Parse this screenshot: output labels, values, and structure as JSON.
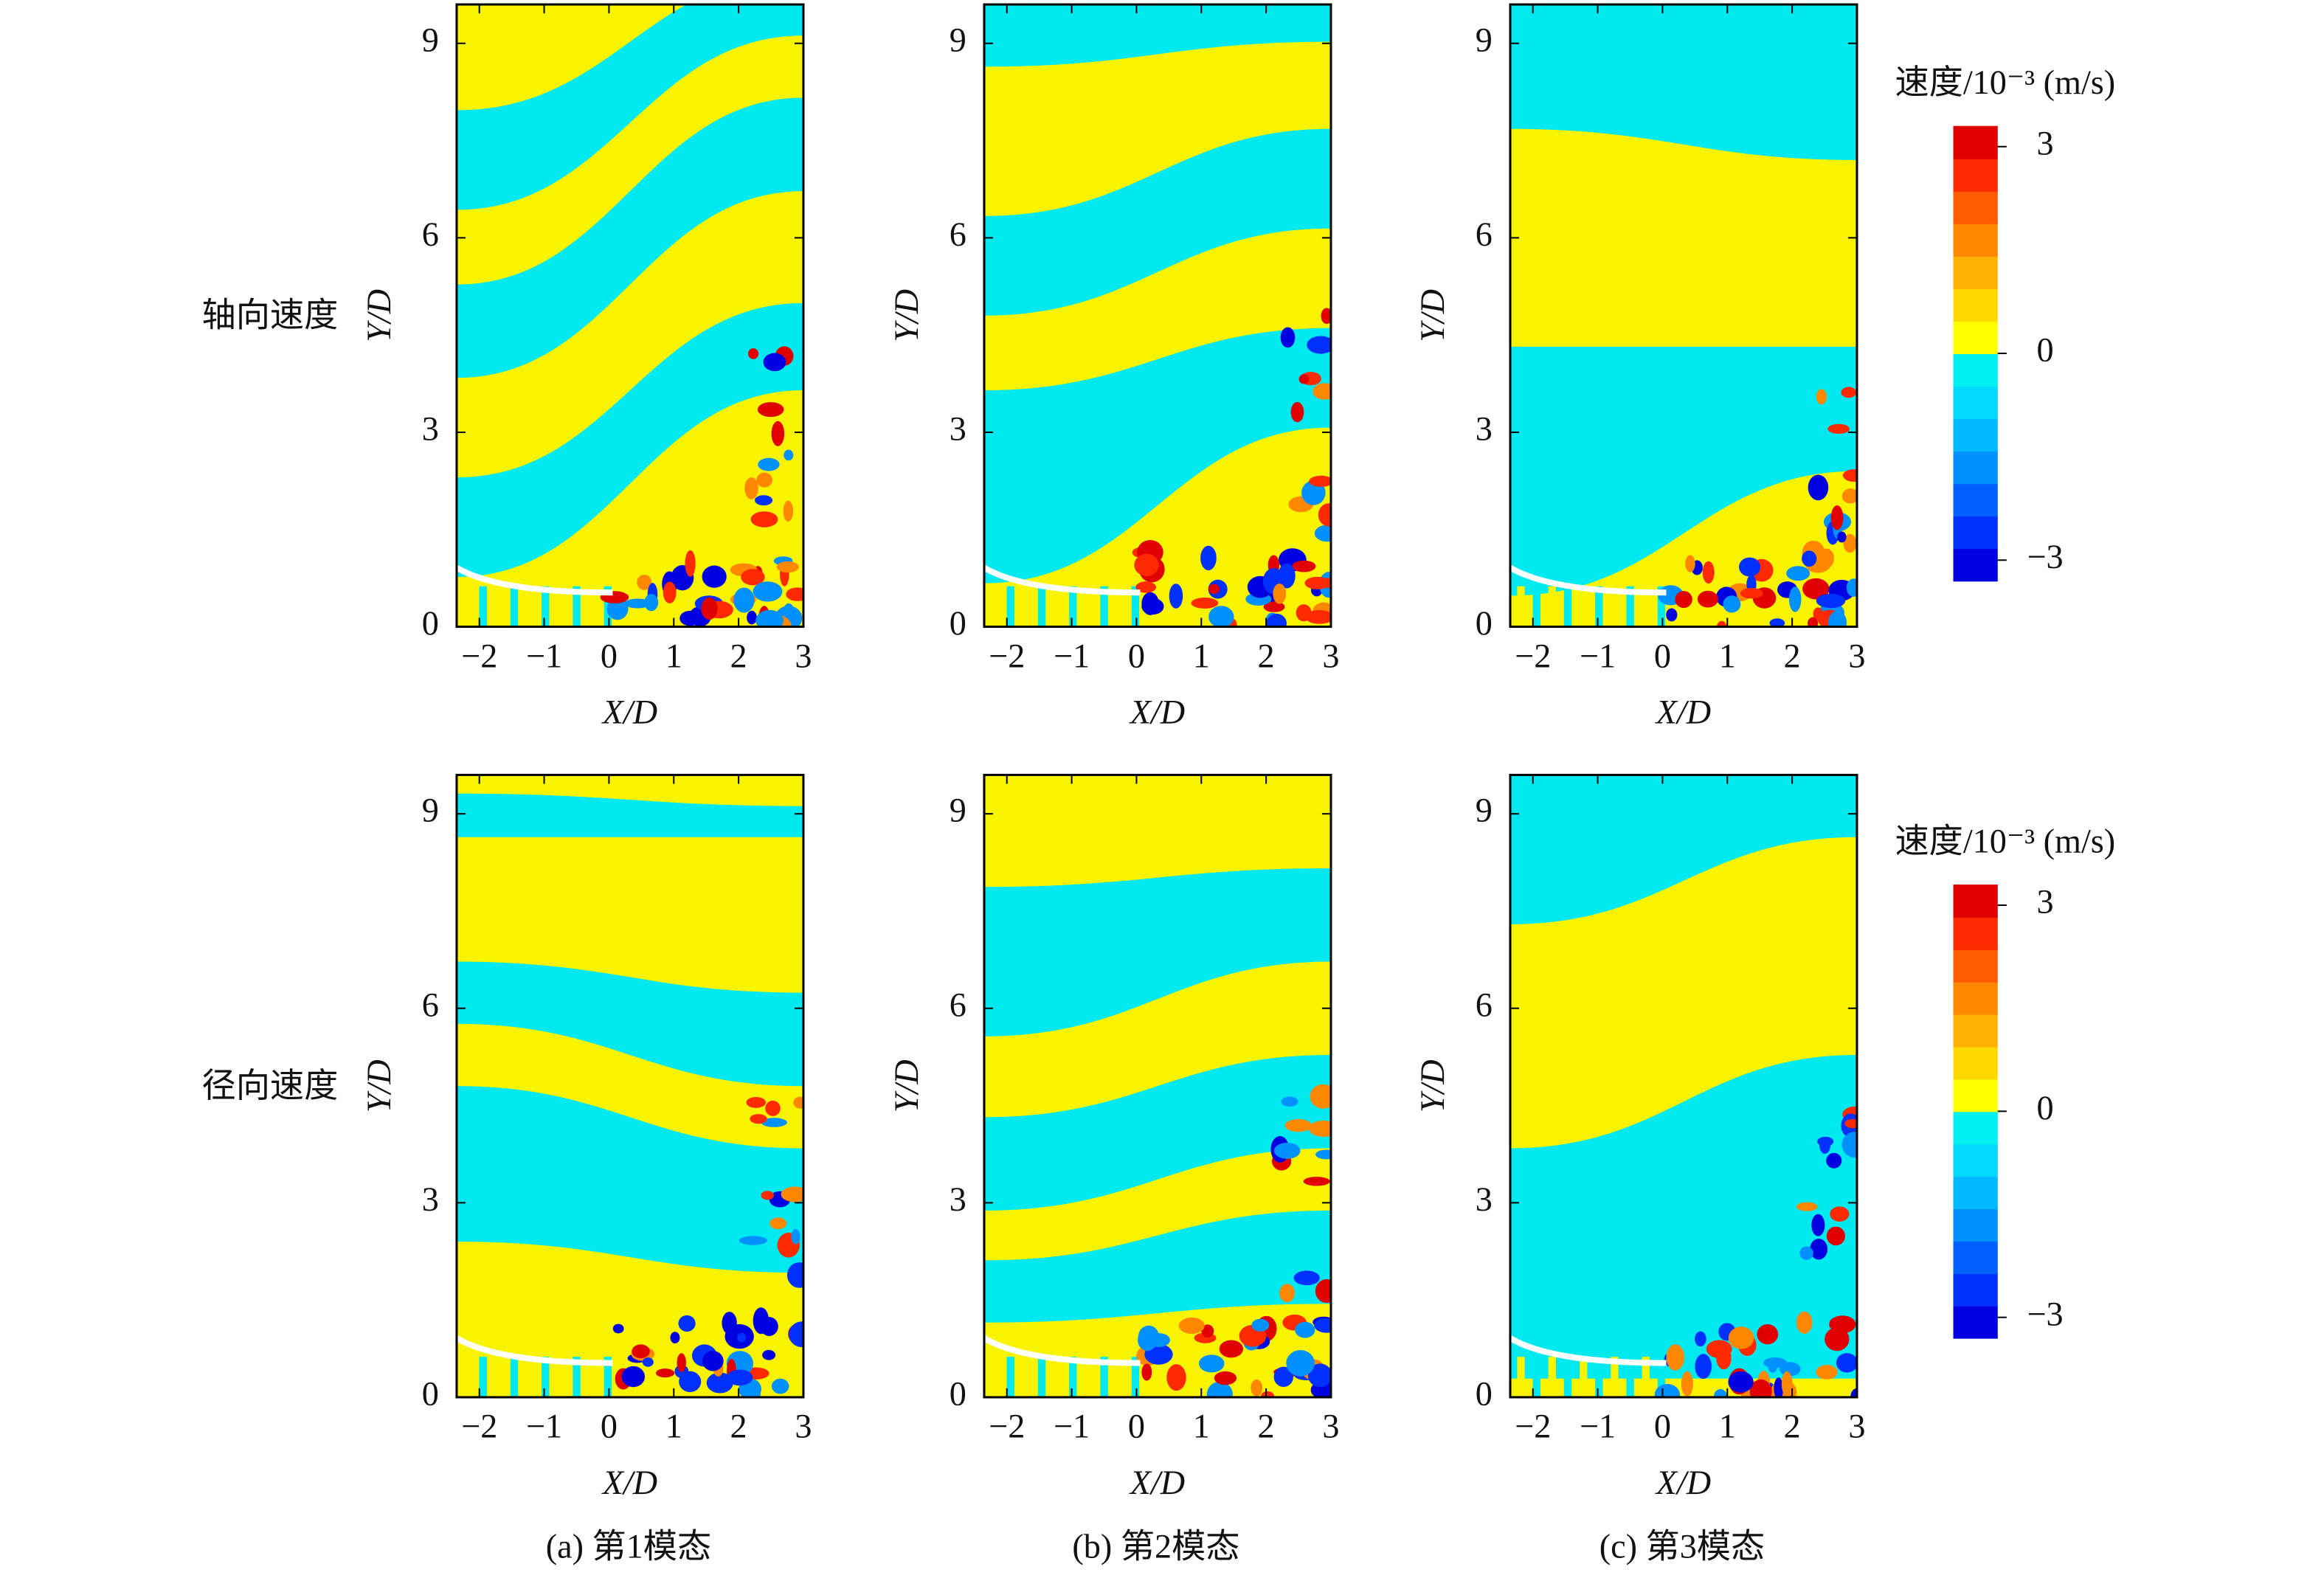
{
  "chart_data": [
    {
      "type": "contour",
      "xlabel": "X/D",
      "ylabel": "Y/D",
      "xlim": [
        -2.35,
        3
      ],
      "ylim": [
        0,
        9.6
      ],
      "xticks": [
        {
          "value": -2,
          "label": "−2"
        },
        {
          "value": -1,
          "label": "−1"
        },
        0,
        1,
        2,
        3
      ],
      "yticks": [
        0,
        3,
        6,
        9
      ]
    },
    {
      "type": "contour",
      "xlabel": "X/D",
      "ylabel": "Y/D",
      "xlim": [
        -2.35,
        3
      ],
      "ylim": [
        0,
        9.6
      ],
      "xticks": [
        {
          "value": -2,
          "label": "−2"
        },
        {
          "value": -1,
          "label": "−1"
        },
        0,
        1,
        2,
        3
      ],
      "yticks": [
        0,
        3,
        6,
        9
      ]
    },
    {
      "type": "contour",
      "xlabel": "X/D",
      "ylabel": "Y/D",
      "xlim": [
        -2.35,
        3
      ],
      "ylim": [
        0,
        9.6
      ],
      "xticks": [
        {
          "value": -2,
          "label": "−2"
        },
        {
          "value": -1,
          "label": "−1"
        },
        0,
        1,
        2,
        3
      ],
      "yticks": [
        0,
        3,
        6,
        9
      ]
    },
    {
      "type": "contour",
      "xlabel": "X/D",
      "ylabel": "Y/D",
      "xlim": [
        -2.35,
        3
      ],
      "ylim": [
        0,
        9.6
      ],
      "xticks": [
        {
          "value": -2,
          "label": "−2"
        },
        {
          "value": -1,
          "label": "−1"
        },
        0,
        1,
        2,
        3
      ],
      "yticks": [
        0,
        3,
        6,
        9
      ]
    },
    {
      "type": "contour",
      "xlabel": "X/D",
      "ylabel": "Y/D",
      "xlim": [
        -2.35,
        3
      ],
      "ylim": [
        0,
        9.6
      ],
      "xticks": [
        {
          "value": -2,
          "label": "−2"
        },
        {
          "value": -1,
          "label": "−1"
        },
        0,
        1,
        2,
        3
      ],
      "yticks": [
        0,
        3,
        6,
        9
      ]
    },
    {
      "type": "contour",
      "xlabel": "X/D",
      "ylabel": "Y/D",
      "xlim": [
        -2.35,
        3
      ],
      "ylim": [
        0,
        9.6
      ],
      "xticks": [
        {
          "value": -2,
          "label": "−2"
        },
        {
          "value": -1,
          "label": "−1"
        },
        0,
        1,
        2,
        3
      ],
      "yticks": [
        0,
        3,
        6,
        9
      ]
    }
  ],
  "row_labels": [
    "轴向速度",
    "径向速度"
  ],
  "captions": [
    "(a) 第1模态",
    "(b) 第2模态",
    "(c) 第3模态"
  ],
  "colorbars": [
    {
      "title": "速度/10⁻³ (m/s)",
      "clim": [
        -3.3,
        3.3
      ],
      "ticks": [
        3,
        0,
        {
          "value": -3,
          "label": "−3"
        }
      ],
      "colors": [
        "#0000e0",
        "#0030ff",
        "#0060ff",
        "#0090ff",
        "#00b8ff",
        "#00d8ff",
        "#00f0f0",
        "#ffff00",
        "#ffd800",
        "#ffb000",
        "#ff8800",
        "#ff5a00",
        "#ff2a00",
        "#e00000"
      ]
    },
    {
      "title": "速度/10⁻³ (m/s)",
      "clim": [
        -3.3,
        3.3
      ],
      "ticks": [
        3,
        0,
        {
          "value": -3,
          "label": "−3"
        }
      ],
      "colors": [
        "#0000e0",
        "#0030ff",
        "#0060ff",
        "#0090ff",
        "#00b8ff",
        "#00d8ff",
        "#00f0f0",
        "#ffff00",
        "#ffd800",
        "#ffb000",
        "#ff8800",
        "#ff5a00",
        "#ff2a00",
        "#e00000"
      ]
    }
  ]
}
